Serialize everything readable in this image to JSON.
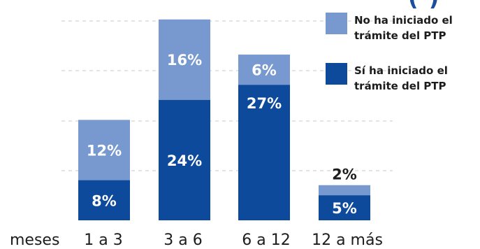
{
  "chart_data": {
    "type": "bar",
    "stacked": true,
    "categories_prefix": "meses",
    "categories": [
      "1 a 3",
      "3 a 6",
      "6 a 12",
      "12 a más"
    ],
    "series": [
      {
        "name": "Sí ha iniciado el trámite del PTP",
        "values": [
          8,
          24,
          27,
          5
        ],
        "labels": [
          "8%",
          "24%",
          "27%",
          "5%"
        ],
        "color": "#0e4a9c"
      },
      {
        "name": "No ha iniciado el trámite del PTP",
        "values": [
          12,
          16,
          6,
          2
        ],
        "labels": [
          "12%",
          "16%",
          "6%",
          "2%"
        ],
        "color": "#7799cf"
      }
    ],
    "ylim": [
      0,
      40
    ],
    "grid": true,
    "legend_position": "top-right",
    "legend": [
      {
        "label": "No ha iniciado el\ntrámite del PTP",
        "color": "#7799cf"
      },
      {
        "label": "Sí ha iniciado el\ntrámite del PTP",
        "color": "#0e4a9c"
      }
    ],
    "header_fragment": "(   )"
  }
}
